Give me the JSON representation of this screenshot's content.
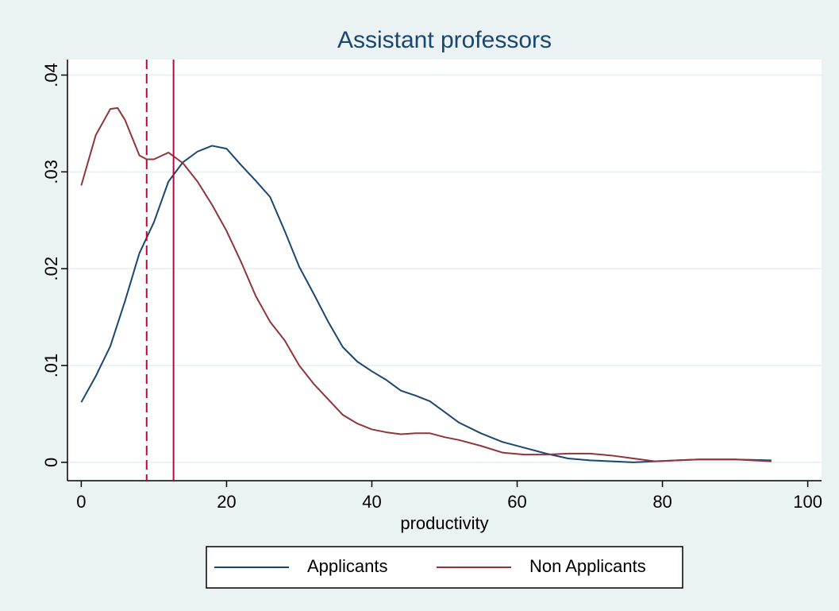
{
  "chart_data": {
    "type": "line",
    "title": "Assistant professors",
    "x_label": "productivity",
    "x": [
      0,
      2,
      4,
      5,
      6,
      8,
      9,
      10,
      12,
      14,
      16,
      18,
      20,
      22,
      24,
      26,
      28,
      30,
      32,
      34,
      36,
      38,
      40,
      42,
      44,
      46,
      48,
      50,
      52,
      55,
      58,
      61,
      64,
      67,
      70,
      73,
      76,
      79,
      82,
      85,
      90,
      95
    ],
    "series": [
      {
        "name": "Applicants",
        "color": "#1a476f",
        "values": [
          0.0062,
          0.0089,
          0.012,
          0.0143,
          0.0166,
          0.0216,
          0.0232,
          0.0248,
          0.029,
          0.031,
          0.0321,
          0.0327,
          0.0324,
          0.0307,
          0.0291,
          0.0274,
          0.0239,
          0.0202,
          0.0174,
          0.0145,
          0.0119,
          0.0104,
          0.0094,
          0.0085,
          0.0074,
          0.0069,
          0.0063,
          0.0052,
          0.0041,
          0.003,
          0.0021,
          0.0015,
          0.0009,
          0.0004,
          0.0002,
          0.0001,
          0,
          0.0001,
          0.0002,
          0.0003,
          0.0003,
          0.0002
        ]
      },
      {
        "name": "Non Applicants",
        "color": "#90353b",
        "values": [
          0.0286,
          0.0338,
          0.0365,
          0.0366,
          0.0354,
          0.0317,
          0.0313,
          0.0313,
          0.032,
          0.0309,
          0.029,
          0.0266,
          0.0239,
          0.0207,
          0.0172,
          0.0145,
          0.0126,
          0.01,
          0.0081,
          0.0065,
          0.0049,
          0.004,
          0.0034,
          0.0031,
          0.0029,
          0.003,
          0.003,
          0.0026,
          0.0023,
          0.0017,
          0.001,
          0.0008,
          0.0008,
          0.0009,
          0.0009,
          0.0007,
          0.0004,
          0.0001,
          0.0002,
          0.0003,
          0.0003,
          0.0001
        ]
      }
    ],
    "reference_lines": [
      {
        "x": 9,
        "style": "dashed",
        "color": "#c10534"
      },
      {
        "x": 12.7,
        "style": "solid",
        "color": "#c10534"
      }
    ],
    "xlim": [
      -1.9,
      101.9
    ],
    "xticks": [
      0,
      20,
      40,
      60,
      80,
      100
    ],
    "ylim": [
      -0.0019,
      0.0416
    ],
    "yticks": [
      0,
      {
        "value": 0.01,
        "label": ".01"
      },
      {
        "value": 0.02,
        "label": ".02"
      },
      {
        "value": 0.03,
        "label": ".03"
      },
      {
        "value": 0.04,
        "label": ".04"
      }
    ],
    "grid": true,
    "legend": "bottom"
  }
}
